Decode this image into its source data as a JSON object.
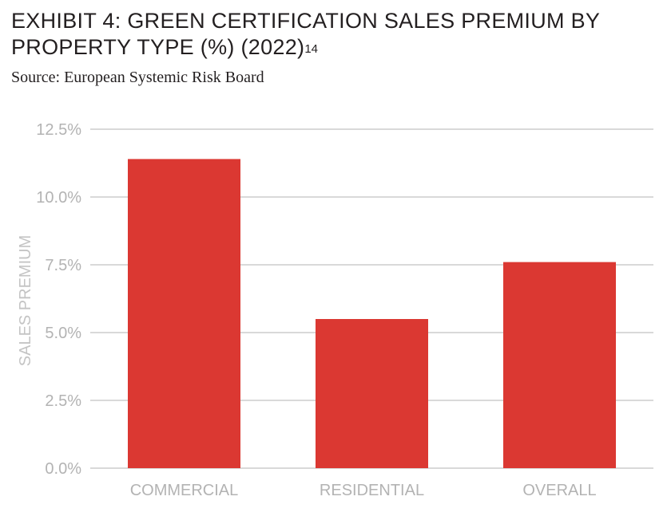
{
  "title": {
    "main": "EXHIBIT 4: GREEN CERTIFICATION SALES PREMIUM BY PROPERTY TYPE (%) (2022)",
    "footnote": "14"
  },
  "source": "Source: European Systemic Risk Board",
  "chart_data": {
    "type": "bar",
    "categories": [
      "COMMERCIAL",
      "RESIDENTIAL",
      "OVERALL"
    ],
    "values": [
      11.4,
      5.5,
      7.6
    ],
    "ylabel": "SALES PREMIUM",
    "xlabel": "",
    "ylim": [
      0,
      12.5
    ],
    "yticks": [
      "0.0%",
      "2.5%",
      "5.0%",
      "7.5%",
      "10.0%",
      "12.5%"
    ],
    "ytick_values": [
      0,
      2.5,
      5,
      7.5,
      10,
      12.5
    ],
    "grid": true,
    "legend": "none",
    "bar_color": "#db3832",
    "grid_color": "#b3b3b3"
  }
}
